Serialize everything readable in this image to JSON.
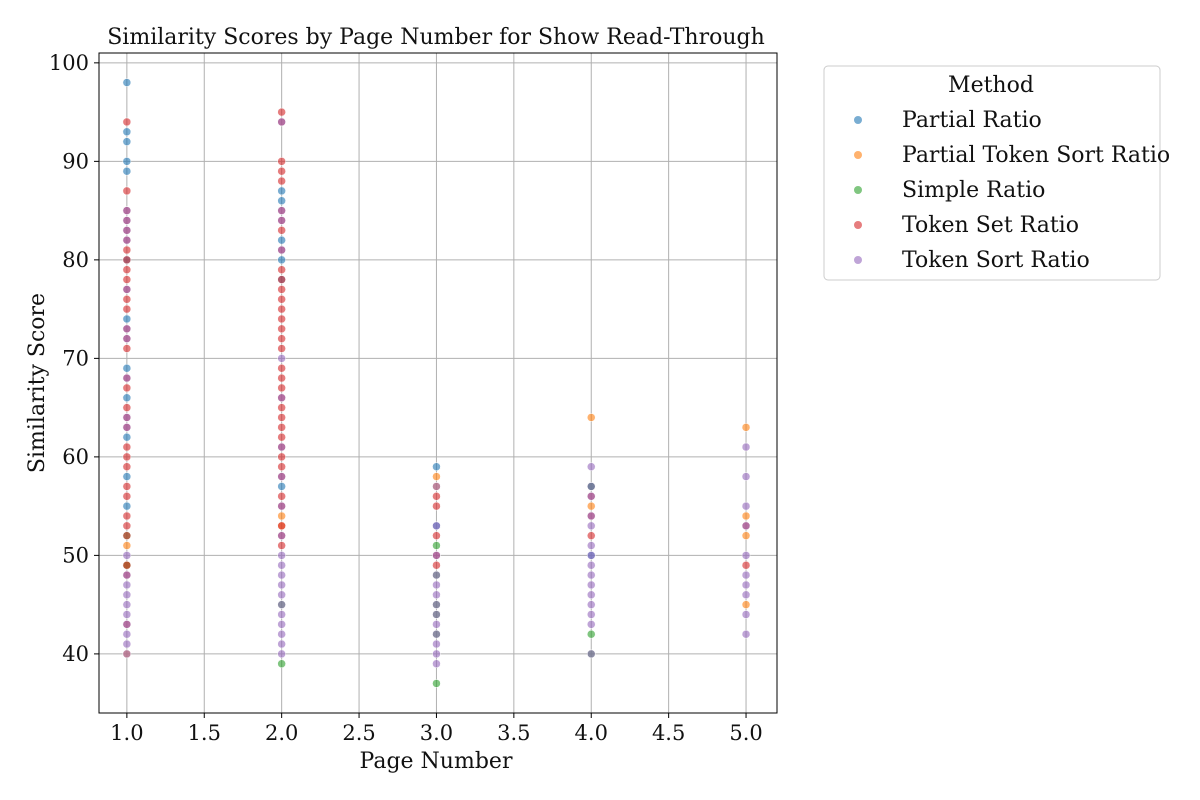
{
  "chart_data": {
    "type": "scatter",
    "title": "Similarity Scores by Page Number for Show Read-Through",
    "xlabel": "Page Number",
    "ylabel": "Similarity Score",
    "xlim": [
      0.82,
      5.2
    ],
    "ylim": [
      34,
      101
    ],
    "xticks": [
      "1.0",
      "1.5",
      "2.0",
      "2.5",
      "3.0",
      "3.5",
      "4.0",
      "4.5",
      "5.0"
    ],
    "yticks": [
      "40",
      "50",
      "60",
      "70",
      "80",
      "90",
      "100"
    ],
    "grid": true,
    "legend": {
      "title": "Method",
      "placement": "outside-top-right",
      "entries": [
        "Partial Ratio",
        "Partial Token Sort Ratio",
        "Simple Ratio",
        "Token Set Ratio",
        "Token Sort Ratio"
      ]
    },
    "colors": {
      "Partial Ratio": "#1f77b4",
      "Partial Token Sort Ratio": "#ff7f0e",
      "Simple Ratio": "#2ca02c",
      "Token Set Ratio": "#d62728",
      "Token Sort Ratio": "#9467bd"
    },
    "series": [
      {
        "name": "Partial Ratio",
        "points": [
          [
            1,
            98
          ],
          [
            1,
            93
          ],
          [
            1,
            92
          ],
          [
            1,
            90
          ],
          [
            1,
            89
          ],
          [
            1,
            80
          ],
          [
            1,
            74
          ],
          [
            1,
            69
          ],
          [
            1,
            66
          ],
          [
            1,
            62
          ],
          [
            1,
            58
          ],
          [
            1,
            55
          ],
          [
            2,
            87
          ],
          [
            2,
            86
          ],
          [
            2,
            82
          ],
          [
            2,
            80
          ],
          [
            2,
            78
          ],
          [
            2,
            57
          ],
          [
            3,
            59
          ],
          [
            3,
            53
          ],
          [
            4,
            57
          ],
          [
            4,
            50
          ]
        ]
      },
      {
        "name": "Partial Token Sort Ratio",
        "points": [
          [
            1,
            51
          ],
          [
            1,
            49
          ],
          [
            1,
            40
          ],
          [
            2,
            54
          ],
          [
            2,
            53
          ],
          [
            3,
            58
          ],
          [
            3,
            57
          ],
          [
            4,
            64
          ],
          [
            4,
            55
          ],
          [
            5,
            63
          ],
          [
            5,
            54
          ],
          [
            5,
            52
          ],
          [
            5,
            45
          ]
        ]
      },
      {
        "name": "Simple Ratio",
        "points": [
          [
            1,
            52
          ],
          [
            1,
            49
          ],
          [
            2,
            45
          ],
          [
            2,
            39
          ],
          [
            3,
            51
          ],
          [
            3,
            48
          ],
          [
            3,
            45
          ],
          [
            3,
            44
          ],
          [
            3,
            42
          ],
          [
            3,
            37
          ],
          [
            4,
            57
          ],
          [
            4,
            42
          ],
          [
            4,
            40
          ]
        ]
      },
      {
        "name": "Token Set Ratio",
        "points": [
          [
            1,
            94
          ],
          [
            1,
            87
          ],
          [
            1,
            85
          ],
          [
            1,
            84
          ],
          [
            1,
            83
          ],
          [
            1,
            82
          ],
          [
            1,
            81
          ],
          [
            1,
            80
          ],
          [
            1,
            79
          ],
          [
            1,
            78
          ],
          [
            1,
            77
          ],
          [
            1,
            76
          ],
          [
            1,
            75
          ],
          [
            1,
            73
          ],
          [
            1,
            72
          ],
          [
            1,
            71
          ],
          [
            1,
            68
          ],
          [
            1,
            67
          ],
          [
            1,
            65
          ],
          [
            1,
            64
          ],
          [
            1,
            63
          ],
          [
            1,
            61
          ],
          [
            1,
            60
          ],
          [
            1,
            59
          ],
          [
            1,
            57
          ],
          [
            1,
            56
          ],
          [
            1,
            54
          ],
          [
            1,
            53
          ],
          [
            1,
            52
          ],
          [
            1,
            49
          ],
          [
            1,
            48
          ],
          [
            1,
            43
          ],
          [
            2,
            95
          ],
          [
            2,
            94
          ],
          [
            2,
            90
          ],
          [
            2,
            89
          ],
          [
            2,
            88
          ],
          [
            2,
            85
          ],
          [
            2,
            84
          ],
          [
            2,
            83
          ],
          [
            2,
            81
          ],
          [
            2,
            79
          ],
          [
            2,
            78
          ],
          [
            2,
            77
          ],
          [
            2,
            76
          ],
          [
            2,
            75
          ],
          [
            2,
            74
          ],
          [
            2,
            73
          ],
          [
            2,
            72
          ],
          [
            2,
            71
          ],
          [
            2,
            69
          ],
          [
            2,
            68
          ],
          [
            2,
            67
          ],
          [
            2,
            66
          ],
          [
            2,
            65
          ],
          [
            2,
            64
          ],
          [
            2,
            63
          ],
          [
            2,
            62
          ],
          [
            2,
            61
          ],
          [
            2,
            60
          ],
          [
            2,
            59
          ],
          [
            2,
            58
          ],
          [
            2,
            56
          ],
          [
            2,
            55
          ],
          [
            2,
            53
          ],
          [
            2,
            52
          ],
          [
            2,
            51
          ],
          [
            3,
            56
          ],
          [
            3,
            55
          ],
          [
            3,
            52
          ],
          [
            3,
            50
          ],
          [
            3,
            49
          ],
          [
            4,
            56
          ],
          [
            4,
            54
          ],
          [
            4,
            52
          ],
          [
            5,
            53
          ],
          [
            5,
            49
          ]
        ]
      },
      {
        "name": "Token Sort Ratio",
        "points": [
          [
            1,
            85
          ],
          [
            1,
            84
          ],
          [
            1,
            83
          ],
          [
            1,
            82
          ],
          [
            1,
            77
          ],
          [
            1,
            73
          ],
          [
            1,
            72
          ],
          [
            1,
            68
          ],
          [
            1,
            64
          ],
          [
            1,
            63
          ],
          [
            1,
            50
          ],
          [
            1,
            48
          ],
          [
            1,
            47
          ],
          [
            1,
            46
          ],
          [
            1,
            45
          ],
          [
            1,
            44
          ],
          [
            1,
            43
          ],
          [
            1,
            42
          ],
          [
            1,
            41
          ],
          [
            1,
            40
          ],
          [
            2,
            94
          ],
          [
            2,
            85
          ],
          [
            2,
            84
          ],
          [
            2,
            81
          ],
          [
            2,
            70
          ],
          [
            2,
            66
          ],
          [
            2,
            61
          ],
          [
            2,
            58
          ],
          [
            2,
            55
          ],
          [
            2,
            52
          ],
          [
            2,
            50
          ],
          [
            2,
            49
          ],
          [
            2,
            48
          ],
          [
            2,
            47
          ],
          [
            2,
            46
          ],
          [
            2,
            45
          ],
          [
            2,
            44
          ],
          [
            2,
            43
          ],
          [
            2,
            42
          ],
          [
            2,
            41
          ],
          [
            2,
            40
          ],
          [
            3,
            57
          ],
          [
            3,
            53
          ],
          [
            3,
            50
          ],
          [
            3,
            48
          ],
          [
            3,
            47
          ],
          [
            3,
            46
          ],
          [
            3,
            45
          ],
          [
            3,
            44
          ],
          [
            3,
            43
          ],
          [
            3,
            42
          ],
          [
            3,
            41
          ],
          [
            3,
            40
          ],
          [
            3,
            39
          ],
          [
            4,
            59
          ],
          [
            4,
            57
          ],
          [
            4,
            56
          ],
          [
            4,
            54
          ],
          [
            4,
            53
          ],
          [
            4,
            51
          ],
          [
            4,
            50
          ],
          [
            4,
            49
          ],
          [
            4,
            48
          ],
          [
            4,
            47
          ],
          [
            4,
            46
          ],
          [
            4,
            45
          ],
          [
            4,
            44
          ],
          [
            4,
            43
          ],
          [
            4,
            40
          ],
          [
            5,
            61
          ],
          [
            5,
            58
          ],
          [
            5,
            55
          ],
          [
            5,
            53
          ],
          [
            5,
            50
          ],
          [
            5,
            48
          ],
          [
            5,
            47
          ],
          [
            5,
            46
          ],
          [
            5,
            44
          ],
          [
            5,
            42
          ]
        ]
      }
    ]
  }
}
